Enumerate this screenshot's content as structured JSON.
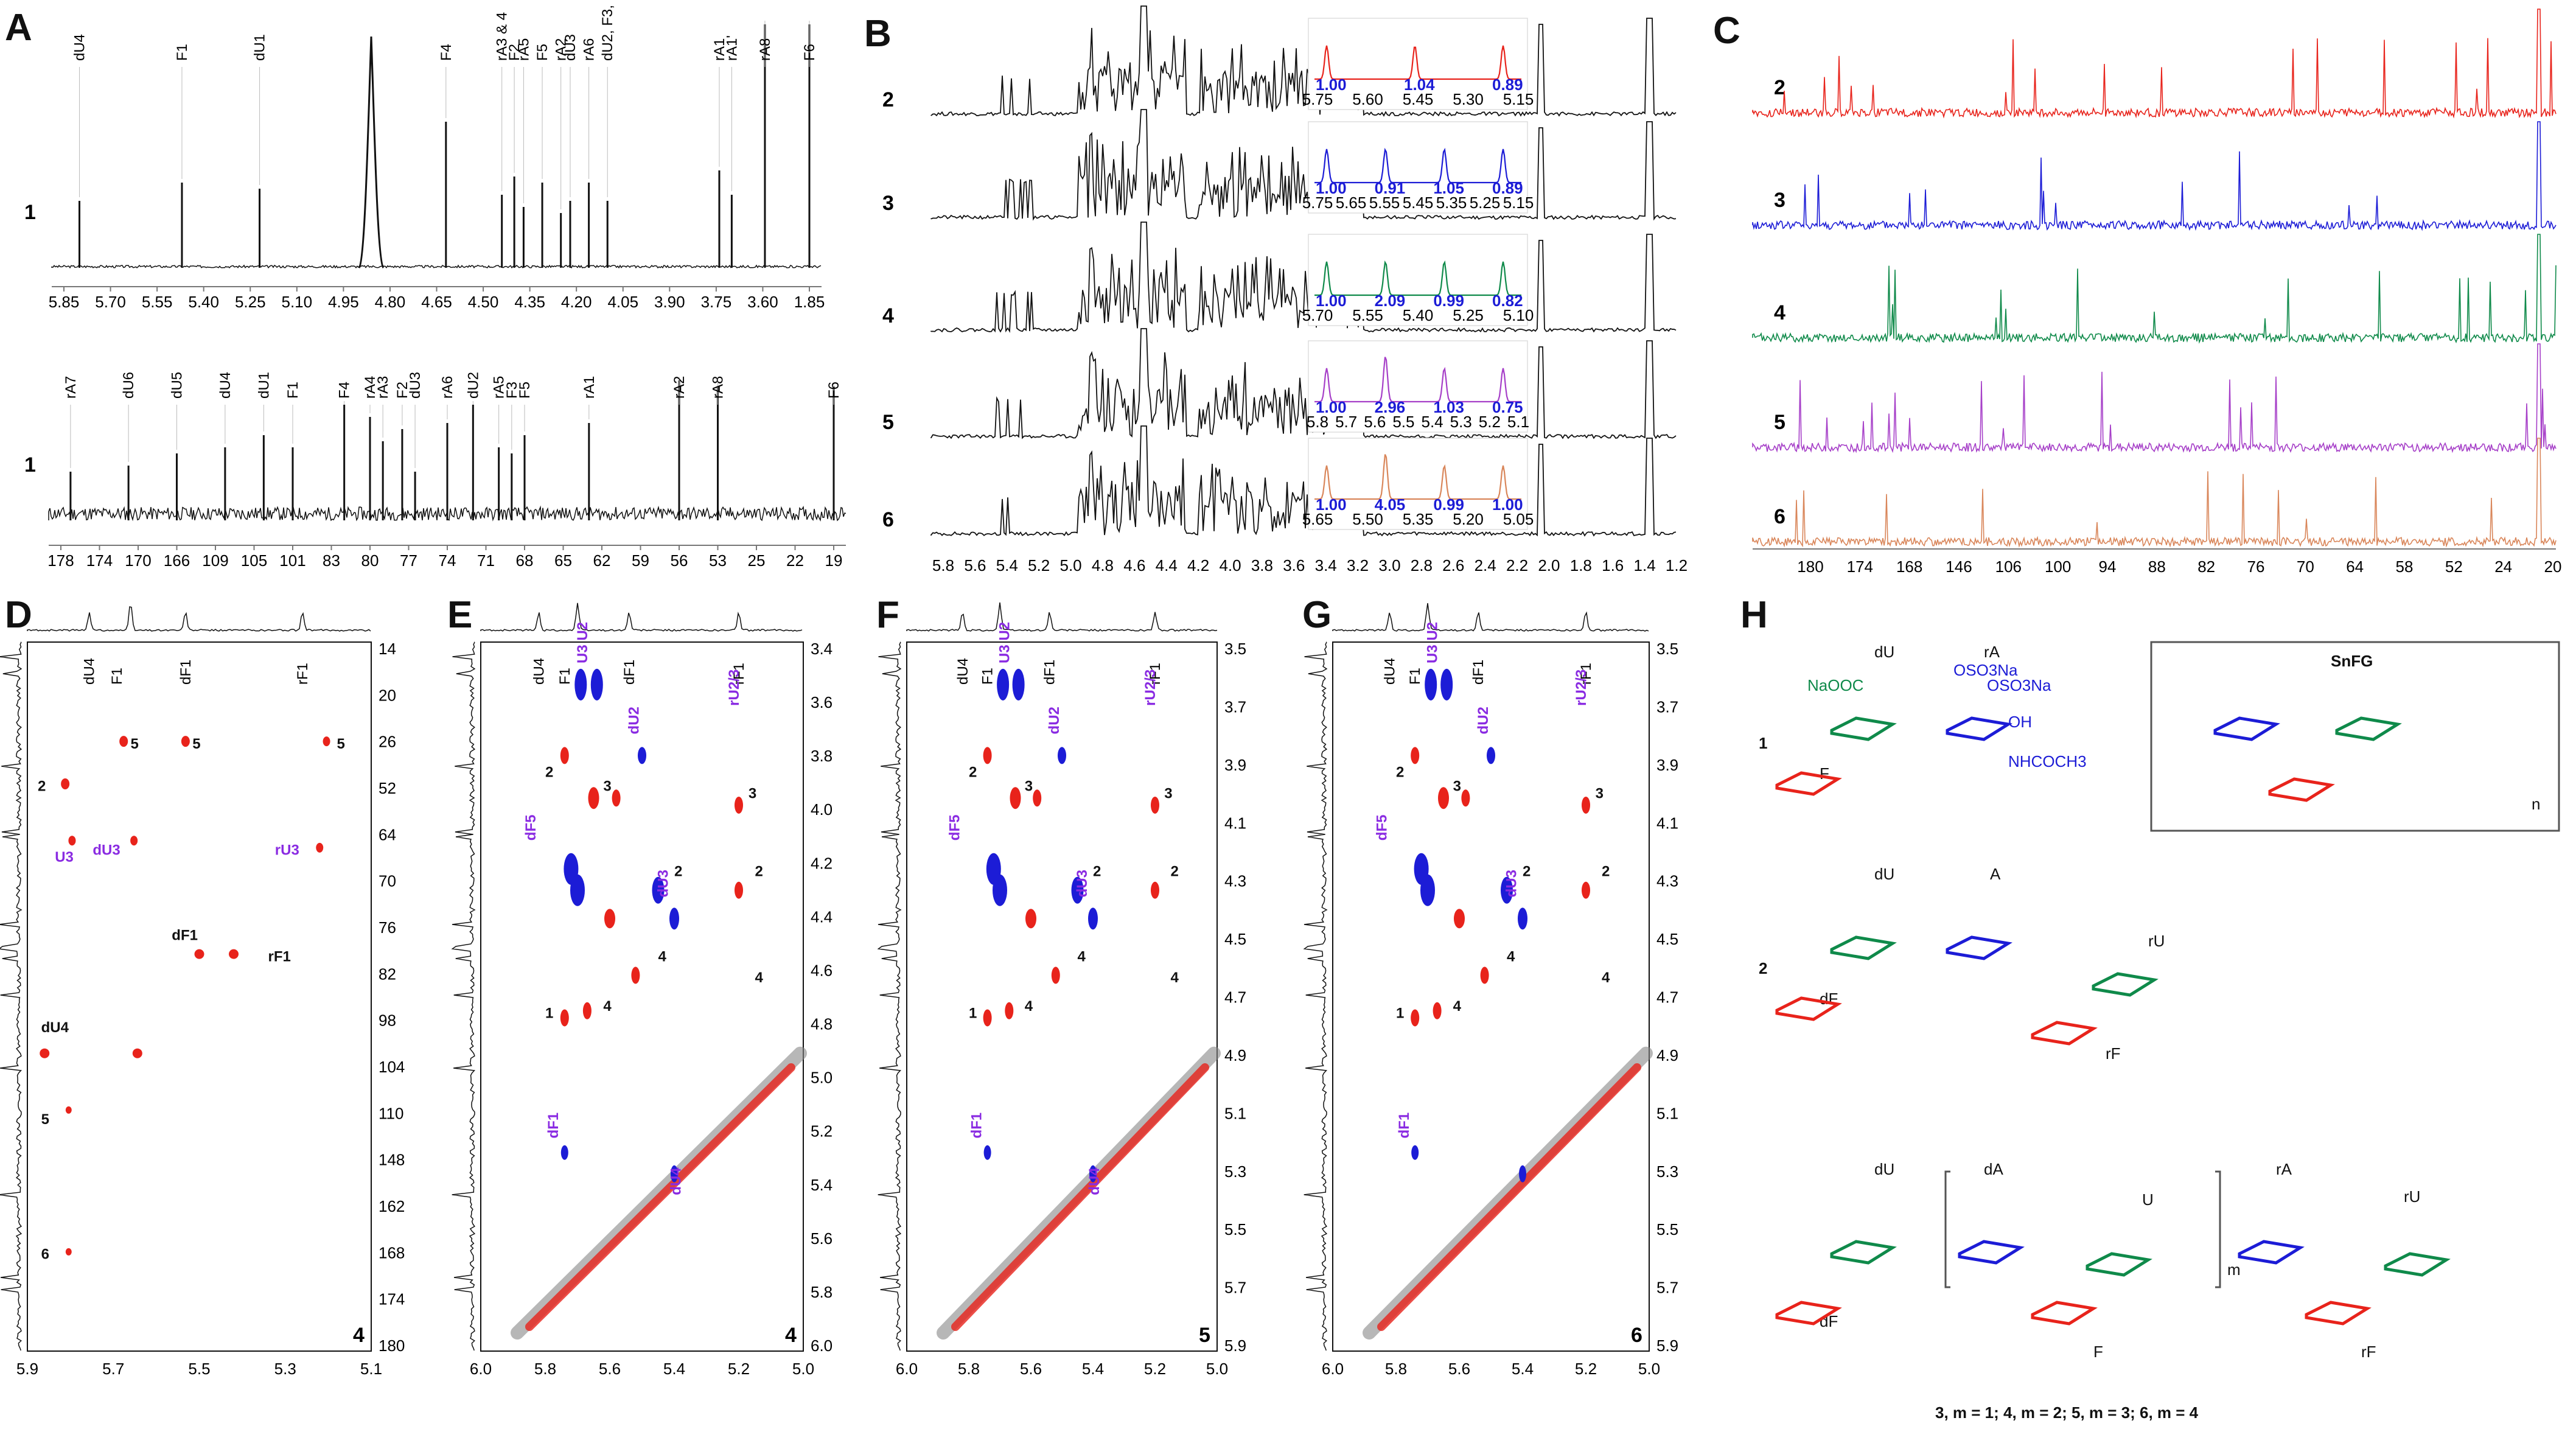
{
  "panels": {
    "a": "A",
    "b": "B",
    "c": "C",
    "d": "D",
    "e": "E",
    "f": "F",
    "g": "G",
    "h": "H"
  },
  "colors": {
    "s2": "#e8231b",
    "s3": "#1c1cd6",
    "s4": "#0f8a4a",
    "s5": "#a63fc8",
    "s6": "#d9865a",
    "purple": "#8a2be2",
    "red": "#e8231b",
    "blue": "#1c1cd6",
    "green": "#0f8a4a"
  },
  "chart_data": [
    {
      "panel": "A",
      "type": "line",
      "title": "1H NMR of 1",
      "series_label": "1",
      "xticks": [
        "5.85",
        "5.70",
        "5.55",
        "5.40",
        "5.25",
        "5.10",
        "4.95",
        "4.80",
        "4.65",
        "4.50",
        "4.35",
        "4.20",
        "4.05",
        "3.90",
        "3.75",
        "3.60",
        "1.85"
      ],
      "peaks": [
        {
          "label": "dU4",
          "x": 5.8
        },
        {
          "label": "F1",
          "x": 5.47
        },
        {
          "label": "dU1",
          "x": 5.22
        },
        {
          "label": "F4",
          "x": 4.62
        },
        {
          "label": "rA3 & 4",
          "x": 4.44
        },
        {
          "label": "F2",
          "x": 4.4
        },
        {
          "label": "rA5",
          "x": 4.37
        },
        {
          "label": "F5",
          "x": 4.31
        },
        {
          "label": "rA2",
          "x": 4.25
        },
        {
          "label": "dU3",
          "x": 4.22
        },
        {
          "label": "rA6",
          "x": 4.16
        },
        {
          "label": "dU2, F3, rA6'",
          "x": 4.1
        },
        {
          "label": "rA1",
          "x": 3.74
        },
        {
          "label": "rA1'",
          "x": 3.7
        },
        {
          "label": "rA8",
          "x": 3.52
        },
        {
          "label": "F6",
          "x": 1.82
        }
      ]
    },
    {
      "panel": "A",
      "type": "line",
      "title": "13C NMR of 1",
      "series_label": "1",
      "xticks": [
        "178",
        "174",
        "170",
        "166",
        "109",
        "105",
        "101",
        "83",
        "80",
        "77",
        "74",
        "71",
        "68",
        "65",
        "62",
        "59",
        "56",
        "53",
        "25",
        "22",
        "19"
      ],
      "peaks": [
        {
          "label": "rA7",
          "x": 177
        },
        {
          "label": "dU6",
          "x": 171
        },
        {
          "label": "dU5",
          "x": 166
        },
        {
          "label": "dU4",
          "x": 108
        },
        {
          "label": "dU1",
          "x": 104
        },
        {
          "label": "F1",
          "x": 101
        },
        {
          "label": "F4",
          "x": 82
        },
        {
          "label": "rA4",
          "x": 80
        },
        {
          "label": "rA3",
          "x": 79
        },
        {
          "label": "F2",
          "x": 77.5
        },
        {
          "label": "dU3",
          "x": 76.5
        },
        {
          "label": "rA6",
          "x": 74
        },
        {
          "label": "dU2",
          "x": 72
        },
        {
          "label": "rA5",
          "x": 70
        },
        {
          "label": "F3",
          "x": 69
        },
        {
          "label": "F5",
          "x": 68
        },
        {
          "label": "rA1",
          "x": 63
        },
        {
          "label": "rA2",
          "x": 56
        },
        {
          "label": "rA8",
          "x": 53
        },
        {
          "label": "F6",
          "x": 18
        }
      ]
    },
    {
      "panel": "B",
      "type": "line",
      "title": "1H NMR of 2-6",
      "series": [
        "2",
        "3",
        "4",
        "5",
        "6"
      ],
      "xticks": [
        "5.8",
        "5.6",
        "5.4",
        "5.2",
        "5.0",
        "4.8",
        "4.6",
        "4.4",
        "4.2",
        "4.0",
        "3.8",
        "3.6",
        "3.4",
        "3.2",
        "3.0",
        "2.8",
        "2.6",
        "2.4",
        "2.2",
        "2.0",
        "1.8",
        "1.6",
        "1.4",
        "1.2"
      ],
      "insets": [
        {
          "series": "2",
          "integrals": [
            "1.00",
            "1.04",
            "0.89"
          ],
          "ticks": [
            "5.75",
            "5.60",
            "5.45",
            "5.30",
            "5.15"
          ]
        },
        {
          "series": "3",
          "integrals": [
            "1.00",
            "0.91",
            "1.05",
            "0.89"
          ],
          "ticks": [
            "5.75",
            "5.65",
            "5.55",
            "5.45",
            "5.35",
            "5.25",
            "5.15"
          ]
        },
        {
          "series": "4",
          "integrals": [
            "1.00",
            "2.09",
            "0.99",
            "0.82"
          ],
          "ticks": [
            "5.70",
            "5.55",
            "5.40",
            "5.25",
            "5.10"
          ]
        },
        {
          "series": "5",
          "integrals": [
            "1.00",
            "2.96",
            "1.03",
            "0.75"
          ],
          "ticks": [
            "5.8",
            "5.7",
            "5.6",
            "5.5",
            "5.4",
            "5.3",
            "5.2",
            "5.1"
          ]
        },
        {
          "series": "6",
          "integrals": [
            "1.00",
            "4.05",
            "0.99",
            "1.00"
          ],
          "ticks": [
            "5.65",
            "5.50",
            "5.35",
            "5.20",
            "5.05"
          ]
        }
      ]
    },
    {
      "panel": "C",
      "type": "line",
      "title": "13C NMR of 2-6",
      "series": [
        "2",
        "3",
        "4",
        "5",
        "6"
      ],
      "xticks": [
        "180",
        "174",
        "168",
        "146",
        "106",
        "100",
        "94",
        "88",
        "82",
        "76",
        "70",
        "64",
        "58",
        "52",
        "24",
        "20"
      ]
    },
    {
      "panel": "D",
      "type": "scatter",
      "title": "HSQC of 4",
      "xticks": [
        "5.9",
        "5.7",
        "5.5",
        "5.3",
        "5.1"
      ],
      "yticks": [
        "14",
        "20",
        "26",
        "52",
        "64",
        "70",
        "76",
        "82",
        "98",
        "104",
        "110",
        "148",
        "162",
        "168",
        "174",
        "180"
      ],
      "top_labels": [
        "dU4",
        "F1",
        "dF1",
        "rF1"
      ],
      "labels": [
        "5",
        "5",
        "5",
        "2",
        "U3",
        "dU3",
        "rU3",
        "dF1",
        "rF1",
        "dU4",
        "5",
        "6"
      ],
      "sample": "4"
    },
    {
      "panel": "E",
      "type": "scatter",
      "title": "TOCSY/NOESY of 4",
      "xticks": [
        "6.0",
        "5.8",
        "5.6",
        "5.4",
        "5.2",
        "5.0"
      ],
      "yticks": [
        "3.4",
        "3.6",
        "3.8",
        "4.0",
        "4.2",
        "4.4",
        "4.6",
        "4.8",
        "5.0",
        "5.2",
        "5.4",
        "5.6",
        "5.8",
        "6.0"
      ],
      "top_labels": [
        "dU4",
        "F1",
        "dF1",
        "rF1"
      ],
      "labels": [
        "U3 U2",
        "dU2",
        "rU2/3",
        "dF5",
        "dU3",
        "dF1",
        "dU4",
        "1",
        "2",
        "3",
        "4"
      ],
      "sample": "4"
    },
    {
      "panel": "F",
      "type": "scatter",
      "title": "TOCSY/NOESY of 5",
      "xticks": [
        "6.0",
        "5.8",
        "5.6",
        "5.4",
        "5.2",
        "5.0"
      ],
      "yticks": [
        "3.5",
        "3.7",
        "3.9",
        "4.1",
        "4.3",
        "4.5",
        "4.7",
        "4.9",
        "5.1",
        "5.3",
        "5.5",
        "5.7",
        "5.9"
      ],
      "top_labels": [
        "dU4",
        "F1",
        "dF1",
        "rF1"
      ],
      "labels": [
        "U3 U2",
        "dU2",
        "rU2/3",
        "dF5",
        "dU3",
        "dF1",
        "dU4",
        "1",
        "2",
        "3",
        "4"
      ],
      "sample": "5"
    },
    {
      "panel": "G",
      "type": "scatter",
      "title": "TOCSY/NOESY of 6",
      "xticks": [
        "6.0",
        "5.8",
        "5.6",
        "5.4",
        "5.2",
        "5.0"
      ],
      "yticks": [
        "3.5",
        "3.7",
        "3.9",
        "4.1",
        "4.3",
        "4.5",
        "4.7",
        "4.9",
        "5.1",
        "5.3",
        "5.5",
        "5.7",
        "5.9"
      ],
      "top_labels": [
        "dU4",
        "F1",
        "dF1",
        "rF1"
      ],
      "labels": [
        "U3 U2",
        "dU2",
        "rU2/3",
        "dF5",
        "dU3",
        "dF1",
        "1",
        "2",
        "3",
        "4"
      ],
      "sample": "6"
    }
  ],
  "structures": {
    "s1": {
      "num": "1",
      "u1": "dU",
      "u2": "rA",
      "f": "F",
      "na": "NaOOC",
      "oso3": "OSO3Na",
      "oso3b": "OSO3Na",
      "oh": "OH",
      "nh": "NHCOCH3"
    },
    "s2": {
      "num": "2",
      "u1": "dU",
      "u2": "A",
      "u3": "rU",
      "f1": "dF",
      "f2": "rF"
    },
    "s3": {
      "u1": "dU",
      "u2": "dA",
      "u3": "U",
      "u4": "rA",
      "u5": "rU",
      "f1": "dF",
      "f2": "F",
      "f3": "rF",
      "m": "m"
    },
    "snfg": {
      "title": "SnFG",
      "n": "n"
    },
    "caption": "3, m = 1; 4, m = 2; 5, m = 3; 6, m = 4"
  }
}
